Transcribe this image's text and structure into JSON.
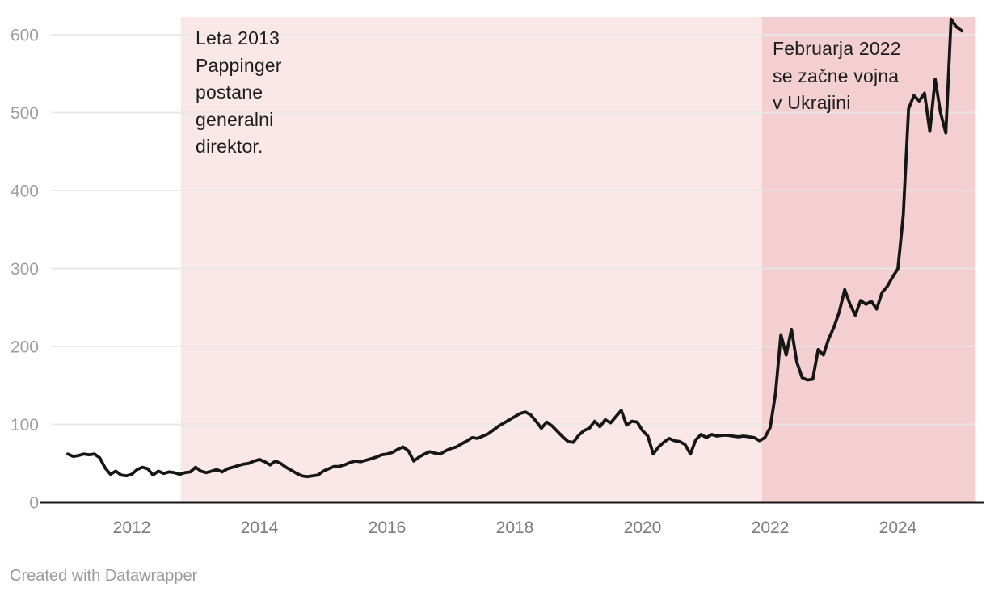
{
  "footer": {
    "attribution": "Created with Datawrapper"
  },
  "chart_data": {
    "type": "line",
    "title": "",
    "xlabel": "",
    "ylabel": "",
    "xlim": [
      2010.9,
      2025.25
    ],
    "ylim": [
      0,
      623
    ],
    "grid": true,
    "legend": "none",
    "xticks": [
      2012,
      2014,
      2016,
      2018,
      2020,
      2022,
      2024
    ],
    "yticks": [
      0,
      100,
      200,
      300,
      400,
      500,
      600
    ],
    "colors": {
      "line": "#161616",
      "axis": "#161616",
      "grid": "#e7e8e7",
      "y_tick_label": "#9e9e9e",
      "x_tick_label": "#7d7d7d",
      "region_light": "#f9e8e7",
      "region_dark": "#f3cfd1",
      "annotation_text": "#1c1c1c"
    },
    "regions": [
      {
        "label": "Leta 2013\nPappinger\npostane\ngeneralni\ndirektor.",
        "x_start": 2012.77,
        "x_end": 2021.87,
        "color": "#f9e8e7"
      },
      {
        "label": "Februarja 2022\nse začne vojna\nv Ukrajini",
        "x_start": 2021.87,
        "x_end": 2025.22,
        "color": "#f3cfd1"
      }
    ],
    "x_start_year": 2011,
    "x_step_months": 1,
    "series": [
      {
        "values": [
          62,
          59,
          60,
          62,
          61,
          62,
          57,
          44,
          36,
          40,
          35,
          34,
          36,
          42,
          45,
          43,
          35,
          40,
          37,
          39,
          38,
          36,
          38,
          39,
          45,
          40,
          38,
          40,
          42,
          39,
          43,
          45,
          47,
          49,
          50,
          53,
          55,
          52,
          48,
          53,
          50,
          45,
          41,
          37,
          34,
          33,
          34,
          35,
          40,
          43,
          46,
          46,
          48,
          51,
          53,
          52,
          54,
          56,
          58,
          61,
          62,
          64,
          68,
          71,
          66,
          53,
          58,
          62,
          65,
          63,
          62,
          66,
          69,
          71,
          75,
          79,
          83,
          82,
          85,
          88,
          93,
          98,
          102,
          106,
          110,
          114,
          116,
          112,
          104,
          95,
          103,
          98,
          91,
          84,
          78,
          77,
          86,
          92,
          95,
          104,
          97,
          106,
          102,
          110,
          118,
          99,
          104,
          103,
          92,
          85,
          62,
          71,
          77,
          82,
          79,
          78,
          74,
          62,
          80,
          87,
          83,
          87,
          85,
          86,
          86,
          85,
          84,
          85,
          84,
          83,
          79,
          83,
          96,
          140,
          215,
          189,
          222,
          180,
          160,
          157,
          158,
          196,
          189,
          210,
          225,
          245,
          273,
          254,
          240,
          259,
          254,
          258,
          248,
          269,
          277,
          289,
          300,
          368,
          505,
          522,
          515,
          525,
          476,
          543,
          500,
          474,
          620,
          610,
          605
        ]
      }
    ]
  }
}
